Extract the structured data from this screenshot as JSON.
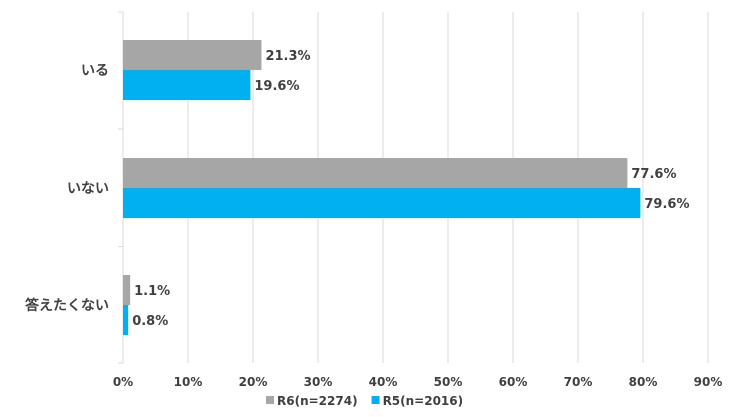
{
  "chart_data": {
    "type": "bar",
    "orientation": "horizontal",
    "categories": [
      "いる",
      "いない",
      "答えたくない"
    ],
    "series": [
      {
        "name": "R6(n=2274)",
        "values": [
          21.3,
          77.6,
          1.1
        ],
        "labels": [
          "21.3%",
          "77.6%",
          "1.1%"
        ],
        "color": "#a6a6a6"
      },
      {
        "name": "R5(n=2016)",
        "values": [
          19.6,
          79.6,
          0.8
        ],
        "labels": [
          "19.6%",
          "79.6%",
          "0.8%"
        ],
        "color": "#00b0f0"
      }
    ],
    "xlim": [
      0,
      90
    ],
    "xticks": [
      0,
      10,
      20,
      30,
      40,
      50,
      60,
      70,
      80,
      90
    ],
    "xtick_labels": [
      "0%",
      "10%",
      "20%",
      "30%",
      "40%",
      "50%",
      "60%",
      "70%",
      "80%",
      "90%"
    ],
    "grid": true,
    "legend_position": "bottom"
  }
}
